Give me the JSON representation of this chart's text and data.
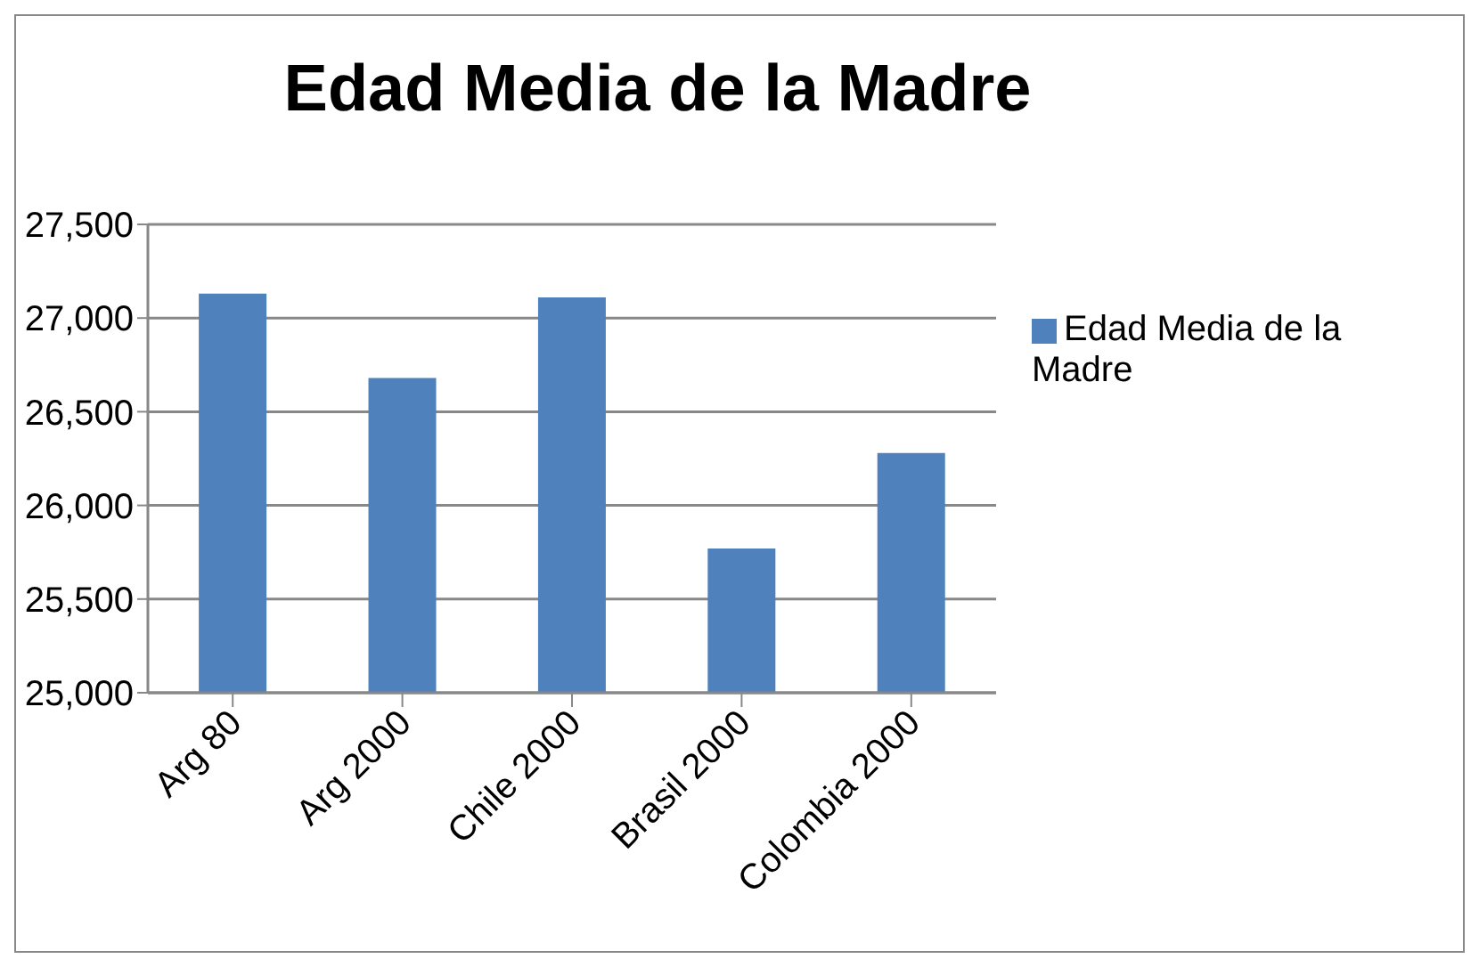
{
  "chart_data": {
    "type": "bar",
    "title": "Edad Media de la Madre",
    "categories": [
      "Arg 80",
      "Arg 2000",
      "Chile 2000",
      "Brasil 2000",
      "Colombia 2000"
    ],
    "series": [
      {
        "name": "Edad Media de la Madre",
        "color": "#4f81bd",
        "values": [
          27130,
          26680,
          27110,
          25770,
          26280
        ]
      }
    ],
    "ylim": [
      25000,
      27500
    ],
    "yticks": [
      {
        "value": 25000,
        "label": "25,000"
      },
      {
        "value": 25500,
        "label": "25,500"
      },
      {
        "value": 26000,
        "label": "26,000"
      },
      {
        "value": 26500,
        "label": "26,500"
      },
      {
        "value": 27000,
        "label": "27,000"
      },
      {
        "value": 27500,
        "label": "27,500"
      }
    ],
    "grid": "y",
    "legend": "right"
  }
}
